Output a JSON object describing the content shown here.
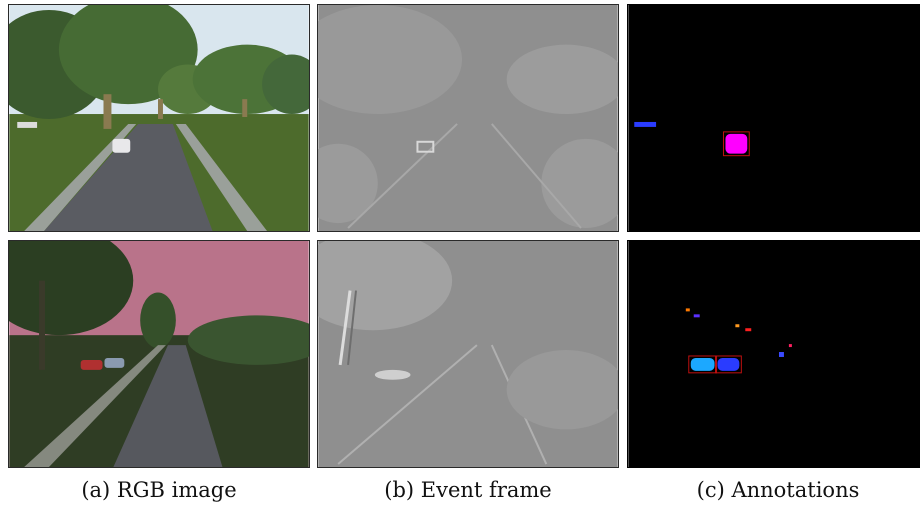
{
  "figure": {
    "captions": [
      {
        "label": "(a) RGB image"
      },
      {
        "label": "(b) Event frame"
      },
      {
        "label": "(c) Annotations"
      }
    ],
    "rows": [
      {
        "scene": "daytime road with trees and white car"
      },
      {
        "scene": "dusk road with pink sky and parked cars"
      }
    ]
  },
  "colors": {
    "sky_day": "#d9e6ee",
    "sky_dusk": "#b9738a",
    "grass": "#3f5a25",
    "road": "#5a5c62",
    "event_gray": "#8f8f8f",
    "annotation_bg": "#000000",
    "annotation_magenta": "#ff00ff",
    "annotation_blue": "#2a3cff",
    "annotation_cyan": "#1ca8ff",
    "annotation_box": "#c01010"
  }
}
